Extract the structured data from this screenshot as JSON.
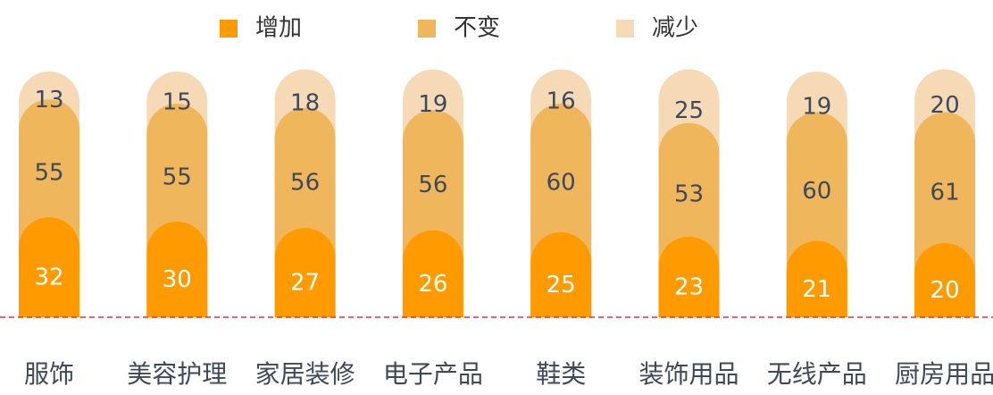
{
  "chart_data": {
    "type": "stacked_bar",
    "categories": [
      "服饰",
      "美容护理",
      "家居装修",
      "电子产品",
      "鞋类",
      "装饰用品",
      "无线产品",
      "厨房用品"
    ],
    "series": [
      {
        "name": "增加",
        "color": "#ff9a00",
        "values": [
          32,
          30,
          27,
          26,
          25,
          23,
          21,
          20
        ]
      },
      {
        "name": "不变",
        "color": "#f0b65c",
        "values": [
          55,
          55,
          56,
          56,
          60,
          53,
          60,
          61
        ]
      },
      {
        "name": "减少",
        "color": "#f5dab5",
        "values": [
          13,
          15,
          18,
          19,
          16,
          25,
          19,
          20
        ]
      }
    ],
    "legend": "top"
  }
}
